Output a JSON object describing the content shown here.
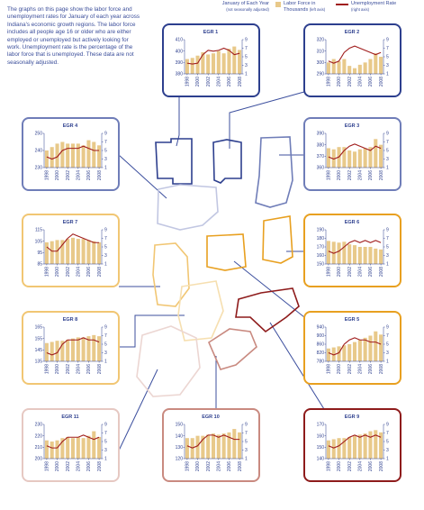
{
  "intro": "The graphs on this page show the labor force and unemployment rates for January of each year across Indiana's economic growth regions. The labor force includes all people age 16 or older who are either employed or unemployed but actively looking for work. Unemployment rate is the percentage of the labor force that is unemployed. These data are not seasonally adjusted.",
  "legend": {
    "note": "January of Each Year",
    "note_sub": "(not seasonally adjusted)",
    "series": [
      {
        "name": "Labor Force in Thousands",
        "sub": "(left axis)",
        "color": "#e8c98a"
      },
      {
        "name": "Unemployment Rate",
        "sub": "(right axis)",
        "color": "#a01c1c"
      }
    ]
  },
  "chart_data": [
    {
      "type": "bar-line",
      "title": "EGR 1",
      "border_color": "#2d3f8e",
      "x": [
        1998,
        1999,
        2000,
        2001,
        2002,
        2003,
        2004,
        2005,
        2006,
        2007,
        2008
      ],
      "xticks": [
        1998,
        2000,
        2002,
        2004,
        2006,
        2008
      ],
      "ylim": [
        380,
        410
      ],
      "yticks": [
        380,
        390,
        400,
        410
      ],
      "y2lim": [
        1,
        9
      ],
      "y2ticks": [
        1,
        3,
        5,
        7,
        9
      ],
      "series": [
        {
          "values": [
            393,
            394,
            396,
            399,
            397,
            398,
            400,
            398,
            402,
            404,
            401
          ]
        },
        {
          "axis": "y2",
          "values": [
            3.5,
            3.3,
            3.5,
            5.5,
            6.5,
            6.3,
            6.5,
            7.0,
            6.5,
            5.5,
            5.8
          ]
        }
      ]
    },
    {
      "type": "bar-line",
      "title": "EGR 2",
      "border_color": "#2d3f8e",
      "x": [
        1998,
        1999,
        2000,
        2001,
        2002,
        2003,
        2004,
        2005,
        2006,
        2007,
        2008
      ],
      "xticks": [
        1998,
        2000,
        2002,
        2004,
        2006,
        2008
      ],
      "ylim": [
        290,
        320
      ],
      "yticks": [
        290,
        300,
        310,
        320
      ],
      "y2lim": [
        1,
        9
      ],
      "y2ticks": [
        1,
        3,
        5,
        7,
        9
      ],
      "series": [
        {
          "values": [
            300,
            303,
            301,
            303,
            297,
            295,
            298,
            300,
            303,
            308,
            305
          ]
        },
        {
          "axis": "y2",
          "values": [
            4,
            3.5,
            4,
            6,
            7,
            7.5,
            7,
            6.5,
            6,
            5.5,
            6
          ]
        }
      ]
    },
    {
      "type": "bar-line",
      "title": "EGR 3",
      "border_color": "#6f7db8",
      "x": [
        1998,
        1999,
        2000,
        2001,
        2002,
        2003,
        2004,
        2005,
        2006,
        2007,
        2008
      ],
      "xticks": [
        1998,
        2000,
        2002,
        2004,
        2006,
        2008
      ],
      "ylim": [
        360,
        390
      ],
      "yticks": [
        360,
        370,
        380,
        390
      ],
      "y2lim": [
        1,
        9
      ],
      "y2ticks": [
        1,
        3,
        5,
        7,
        9
      ],
      "series": [
        {
          "values": [
            377,
            376,
            378,
            378,
            375,
            374,
            376,
            377,
            378,
            385,
            380
          ]
        },
        {
          "axis": "y2",
          "values": [
            3.5,
            3,
            3.5,
            5,
            6,
            6.5,
            6,
            5.5,
            5,
            6,
            5.5
          ]
        }
      ]
    },
    {
      "type": "bar-line",
      "title": "EGR 4",
      "border_color": "#6f7db8",
      "x": [
        1998,
        1999,
        2000,
        2001,
        2002,
        2003,
        2004,
        2005,
        2006,
        2007,
        2008
      ],
      "xticks": [
        1998,
        2000,
        2002,
        2004,
        2006,
        2008
      ],
      "ylim": [
        230,
        250
      ],
      "yticks": [
        230,
        240,
        250
      ],
      "y2lim": [
        1,
        9
      ],
      "y2ticks": [
        1,
        3,
        5,
        7,
        9
      ],
      "series": [
        {
          "values": [
            240,
            242,
            244,
            245,
            244,
            244,
            244,
            243,
            246,
            245,
            243
          ]
        },
        {
          "axis": "y2",
          "values": [
            3.5,
            3,
            3.5,
            5,
            5.5,
            5.5,
            5.5,
            6,
            5.5,
            5,
            5
          ]
        }
      ]
    },
    {
      "type": "bar-line",
      "title": "EGR 5",
      "border_color": "#e8a020",
      "x": [
        1998,
        1999,
        2000,
        2001,
        2002,
        2003,
        2004,
        2005,
        2006,
        2007,
        2008
      ],
      "xticks": [
        1998,
        2000,
        2002,
        2004,
        2006,
        2008
      ],
      "ylim": [
        780,
        940
      ],
      "yticks": [
        780,
        820,
        860,
        900,
        940
      ],
      "y2lim": [
        1,
        9
      ],
      "y2ticks": [
        1,
        3,
        5,
        7,
        9
      ],
      "series": [
        {
          "values": [
            840,
            845,
            850,
            855,
            860,
            870,
            880,
            890,
            900,
            920,
            905
          ]
        },
        {
          "axis": "y2",
          "values": [
            3,
            2.5,
            3,
            5,
            6,
            6.5,
            6,
            6,
            5.5,
            5.5,
            5
          ]
        }
      ]
    },
    {
      "type": "bar-line",
      "title": "EGR 6",
      "border_color": "#e8a020",
      "x": [
        1998,
        1999,
        2000,
        2001,
        2002,
        2003,
        2004,
        2005,
        2006,
        2007,
        2008
      ],
      "xticks": [
        1998,
        2000,
        2002,
        2004,
        2006,
        2008
      ],
      "ylim": [
        150,
        190
      ],
      "yticks": [
        150,
        160,
        170,
        180,
        190
      ],
      "y2lim": [
        1,
        9
      ],
      "y2ticks": [
        1,
        3,
        5,
        7,
        9
      ],
      "series": [
        {
          "values": [
            177,
            176,
            175,
            176,
            173,
            172,
            170,
            170,
            170,
            168,
            167
          ]
        },
        {
          "axis": "y2",
          "values": [
            4,
            3.5,
            4,
            5,
            6,
            6.5,
            6,
            6.5,
            6,
            6.5,
            6
          ]
        }
      ]
    },
    {
      "type": "bar-line",
      "title": "EGR 7",
      "border_color": "#f1c673",
      "x": [
        1998,
        1999,
        2000,
        2001,
        2002,
        2003,
        2004,
        2005,
        2006,
        2007,
        2008
      ],
      "xticks": [
        1998,
        2000,
        2002,
        2004,
        2006,
        2008
      ],
      "ylim": [
        85,
        115
      ],
      "yticks": [
        85,
        95,
        105,
        115
      ],
      "y2lim": [
        1,
        9
      ],
      "y2ticks": [
        1,
        3,
        5,
        7,
        9
      ],
      "series": [
        {
          "values": [
            104,
            105,
            106,
            106,
            107,
            108,
            107,
            107,
            106,
            105,
            104
          ]
        },
        {
          "axis": "y2",
          "values": [
            5,
            4,
            4,
            5.5,
            7,
            8,
            7.5,
            7,
            6.5,
            6,
            6
          ]
        }
      ]
    },
    {
      "type": "bar-line",
      "title": "EGR 8",
      "border_color": "#f1c673",
      "x": [
        1998,
        1999,
        2000,
        2001,
        2002,
        2003,
        2004,
        2005,
        2006,
        2007,
        2008
      ],
      "xticks": [
        1998,
        2000,
        2002,
        2004,
        2006,
        2008
      ],
      "ylim": [
        135,
        165
      ],
      "yticks": [
        135,
        145,
        155,
        165
      ],
      "y2lim": [
        1,
        9
      ],
      "y2ticks": [
        1,
        3,
        5,
        7,
        9
      ],
      "series": [
        {
          "values": [
            151,
            152,
            153,
            153,
            154,
            155,
            156,
            156,
            157,
            158,
            157
          ]
        },
        {
          "axis": "y2",
          "values": [
            3,
            2.5,
            3,
            5,
            6,
            6,
            6,
            6.5,
            6,
            6,
            5.5
          ]
        }
      ]
    },
    {
      "type": "bar-line",
      "title": "EGR 9",
      "border_color": "#8e1b1b",
      "x": [
        1998,
        1999,
        2000,
        2001,
        2002,
        2003,
        2004,
        2005,
        2006,
        2007,
        2008
      ],
      "xticks": [
        1998,
        2000,
        2002,
        2004,
        2006,
        2008
      ],
      "ylim": [
        140,
        170
      ],
      "yticks": [
        140,
        150,
        160,
        170
      ],
      "y2lim": [
        1,
        9
      ],
      "y2ticks": [
        1,
        3,
        5,
        7,
        9
      ],
      "series": [
        {
          "values": [
            156,
            157,
            158,
            158,
            159,
            160,
            161,
            162,
            164,
            165,
            163
          ]
        },
        {
          "axis": "y2",
          "values": [
            4,
            3.5,
            4,
            5,
            6,
            6.5,
            6,
            6.5,
            6,
            6.5,
            6
          ]
        }
      ]
    },
    {
      "type": "bar-line",
      "title": "EGR 10",
      "border_color": "#c98a80",
      "x": [
        1998,
        1999,
        2000,
        2001,
        2002,
        2003,
        2004,
        2005,
        2006,
        2007,
        2008
      ],
      "xticks": [
        1998,
        2000,
        2002,
        2004,
        2006,
        2008
      ],
      "ylim": [
        120,
        150
      ],
      "yticks": [
        120,
        130,
        140,
        150
      ],
      "y2lim": [
        1,
        9
      ],
      "y2ticks": [
        1,
        3,
        5,
        7,
        9
      ],
      "series": [
        {
          "values": [
            138,
            138,
            140,
            140,
            141,
            142,
            141,
            142,
            143,
            146,
            143
          ]
        },
        {
          "axis": "y2",
          "values": [
            4,
            3.5,
            4,
            5.5,
            6.5,
            6.5,
            6,
            6.5,
            6,
            5.5,
            5.5
          ]
        }
      ]
    },
    {
      "type": "bar-line",
      "title": "EGR 11",
      "border_color": "#e6c8c2",
      "x": [
        1998,
        1999,
        2000,
        2001,
        2002,
        2003,
        2004,
        2005,
        2006,
        2007,
        2008
      ],
      "xticks": [
        1998,
        2000,
        2002,
        2004,
        2006,
        2008
      ],
      "ylim": [
        200,
        230
      ],
      "yticks": [
        200,
        210,
        220,
        230
      ],
      "y2lim": [
        1,
        9
      ],
      "y2ticks": [
        1,
        3,
        5,
        7,
        9
      ],
      "series": [
        {
          "values": [
            216,
            215,
            216,
            218,
            219,
            218,
            219,
            218,
            220,
            224,
            219
          ]
        },
        {
          "axis": "y2",
          "values": [
            4,
            3.5,
            3.5,
            5,
            6,
            6,
            6,
            6.5,
            6,
            5.5,
            6
          ]
        }
      ]
    }
  ]
}
